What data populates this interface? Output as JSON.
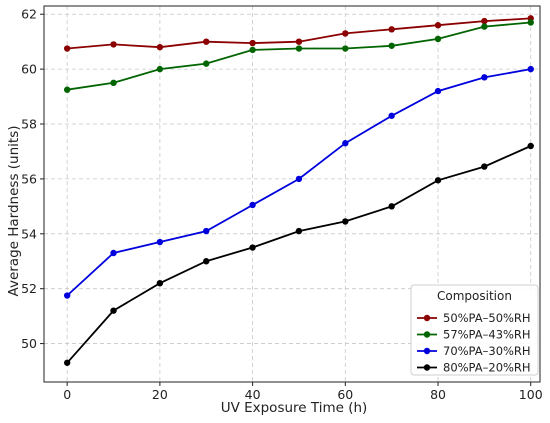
{
  "chart_data": {
    "type": "line",
    "title": "",
    "xlabel": "UV Exposure Time (h)",
    "ylabel": "Average Hardness (units)",
    "xlim": [
      -5,
      102
    ],
    "ylim": [
      48.6,
      62.3
    ],
    "xticks": [
      0,
      20,
      40,
      60,
      80,
      100
    ],
    "yticks": [
      50,
      52,
      54,
      56,
      58,
      60,
      62
    ],
    "grid": true,
    "legend": {
      "title": "Composition",
      "placement": "bottom-right"
    },
    "x": [
      0,
      10,
      20,
      30,
      40,
      50,
      60,
      70,
      80,
      90,
      100
    ],
    "series": [
      {
        "name": "50%PA–50%RH",
        "color": "#8b0000",
        "values": [
          60.75,
          60.9,
          60.8,
          61.0,
          60.95,
          61.0,
          61.3,
          61.45,
          61.6,
          61.75,
          61.85
        ]
      },
      {
        "name": "57%PA–43%RH",
        "color": "#006400",
        "values": [
          59.25,
          59.5,
          60.0,
          60.2,
          60.7,
          60.75,
          60.75,
          60.85,
          61.1,
          61.55,
          61.7
        ]
      },
      {
        "name": "70%PA–30%RH",
        "color": "#0000dd",
        "values": [
          51.75,
          53.3,
          53.7,
          54.1,
          55.05,
          56.0,
          57.3,
          58.3,
          59.2,
          59.7,
          60.0
        ]
      },
      {
        "name": "80%PA–20%RH",
        "color": "#000000",
        "values": [
          49.3,
          51.2,
          52.2,
          53.0,
          53.5,
          54.1,
          54.45,
          55.0,
          55.95,
          56.45,
          57.2
        ]
      }
    ]
  }
}
